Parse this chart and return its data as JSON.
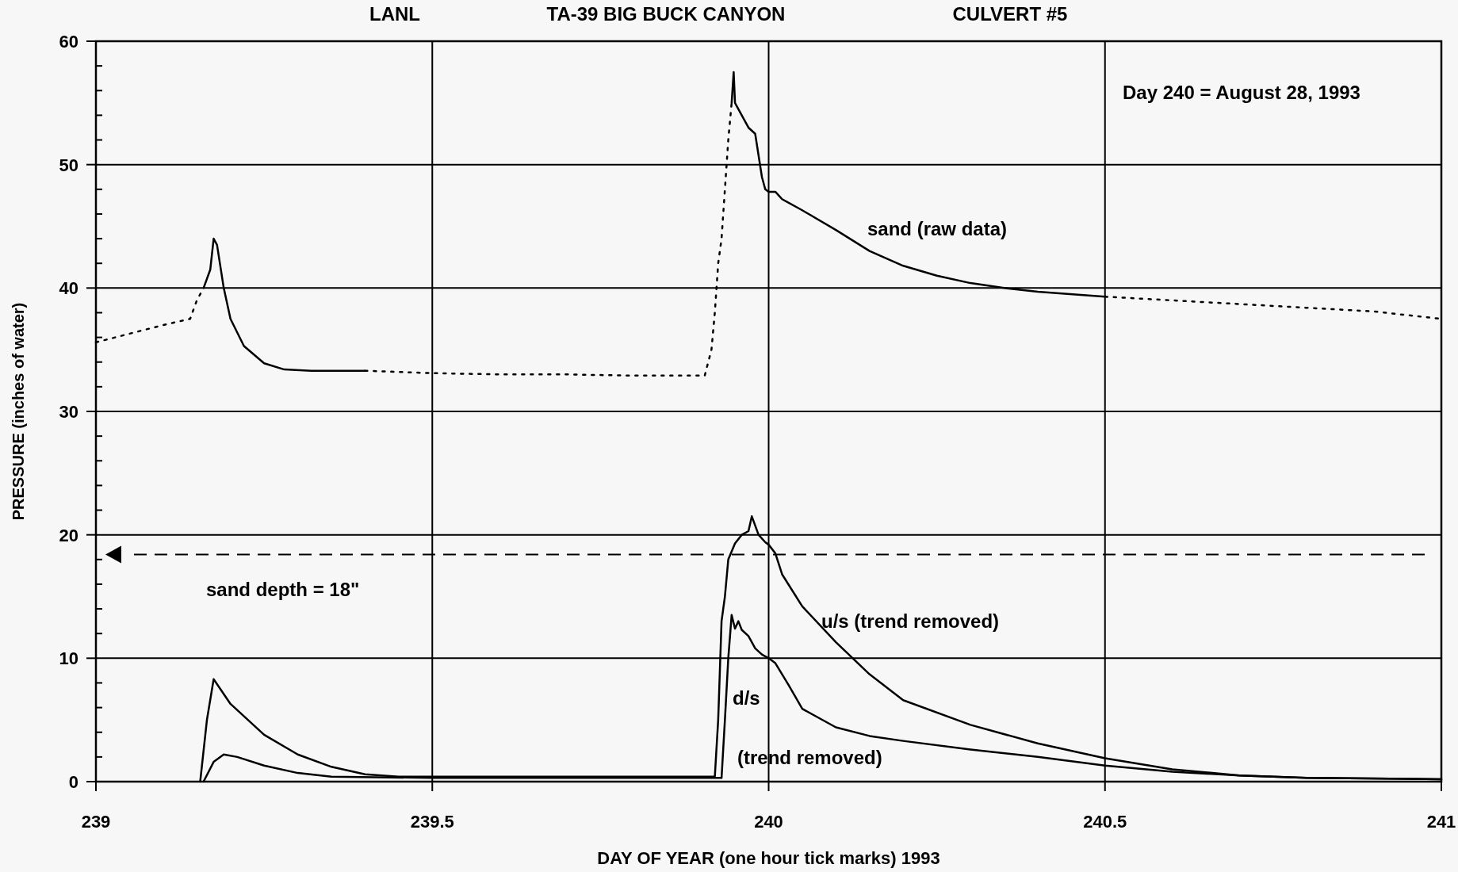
{
  "chart_data": {
    "type": "line",
    "title": "TA-39 BIG BUCK CANYON",
    "xlabel": "DAY OF YEAR (one hour tick marks) 1993",
    "ylabel": "PRESSURE (inches of water)",
    "annotations": [
      "LANL",
      "CULVERT #5",
      "Day 240 = August 28, 1993"
    ],
    "xlim": [
      239,
      241
    ],
    "xticks": [
      239,
      239.5,
      240,
      240.5,
      241
    ],
    "ylim": [
      0,
      60
    ],
    "yticks": [
      0,
      {
        "value": 2,
        "label": null
      },
      {
        "value": 4,
        "label": null
      },
      {
        "value": 6,
        "label": null
      },
      {
        "value": 8,
        "label": null
      },
      10,
      {
        "value": 12,
        "label": null
      },
      {
        "value": 14,
        "label": null
      },
      {
        "value": 16,
        "label": null
      },
      {
        "value": 18,
        "label": null
      },
      20,
      {
        "value": 22,
        "label": null
      },
      {
        "value": 24,
        "label": null
      },
      {
        "value": 26,
        "label": null
      },
      {
        "value": 28,
        "label": null
      },
      30,
      {
        "value": 32,
        "label": null
      },
      {
        "value": 34,
        "label": null
      },
      {
        "value": 36,
        "label": null
      },
      {
        "value": 38,
        "label": null
      },
      40,
      {
        "value": 42,
        "label": null
      },
      {
        "value": 44,
        "label": null
      },
      {
        "value": 46,
        "label": null
      },
      {
        "value": 48,
        "label": null
      },
      50,
      {
        "value": 52,
        "label": null
      },
      {
        "value": 54,
        "label": null
      },
      {
        "value": 56,
        "label": null
      },
      {
        "value": 58,
        "label": null
      },
      60
    ],
    "grid": true,
    "ref_lines": [
      {
        "axis": "y",
        "value": 18.4,
        "label": "sand depth = 18\"",
        "line_style": "dashed",
        "color": "#000000"
      }
    ],
    "series": [
      {
        "name": "sand (raw data)",
        "color": "#000000",
        "line_style": "solid",
        "x": [
          239.16,
          239.17,
          239.175,
          239.18,
          239.19,
          239.2,
          239.22,
          239.25,
          239.28,
          239.32,
          239.4,
          239.42,
          239.945,
          239.948,
          239.95,
          239.96,
          239.97,
          239.98,
          239.99,
          239.995,
          240.0,
          240.01,
          240.02,
          240.05,
          240.1,
          240.15,
          240.2,
          240.25,
          240.3,
          240.35,
          240.4,
          240.5
        ],
        "values": [
          40,
          41.5,
          44,
          43.5,
          40,
          37.5,
          35.3,
          33.9,
          33.4,
          33.3,
          33.3,
          null,
          55,
          57.5,
          55,
          54,
          53,
          52.5,
          49,
          48,
          47.8,
          47.8,
          47.2,
          46.3,
          44.7,
          43,
          41.8,
          41,
          40.4,
          40,
          39.7,
          39.3
        ]
      },
      {
        "color": "#000000",
        "line_style": "dotted",
        "x": [
          239,
          239.05,
          239.1,
          239.14,
          239.15,
          239.16,
          239.17,
          239.4,
          239.5,
          239.6,
          239.7,
          239.8,
          239.905,
          239.915,
          239.92,
          239.925,
          239.93,
          239.935,
          239.94,
          239.945,
          239.95,
          240.5,
          240.7,
          240.9,
          241
        ],
        "values": [
          35.6,
          36.3,
          37,
          37.5,
          39,
          40,
          null,
          33.3,
          33.1,
          33,
          33,
          32.9,
          32.9,
          35,
          38,
          42,
          44,
          48,
          52,
          55,
          null,
          39.3,
          38.7,
          38.1,
          37.5
        ]
      },
      {
        "name": "u/s (trend removed)",
        "color": "#000000",
        "line_style": "solid",
        "x": [
          239.155,
          239.165,
          239.175,
          239.2,
          239.25,
          239.3,
          239.35,
          239.4,
          239.45,
          239.6,
          239.8,
          239.92,
          239.925,
          239.93,
          239.935,
          239.94,
          239.95,
          239.96,
          239.97,
          239.975,
          239.985,
          239.995,
          240.0,
          240.01,
          240.02,
          240.05,
          240.1,
          240.15,
          240.2,
          240.3,
          240.4,
          240.5,
          240.6,
          240.7,
          240.8,
          241
        ],
        "values": [
          0,
          5,
          8.3,
          6.3,
          3.8,
          2.2,
          1.2,
          0.6,
          0.4,
          0.4,
          0.4,
          0.4,
          5,
          13,
          15,
          18,
          19.3,
          20,
          20.3,
          21.5,
          20,
          19.4,
          19.2,
          18.5,
          16.8,
          14.2,
          11.3,
          8.7,
          6.6,
          4.6,
          3.1,
          1.9,
          1,
          0.5,
          0.3,
          0.2
        ]
      },
      {
        "name": "d/s (trend removed)",
        "color": "#000000",
        "line_style": "solid",
        "x": [
          239.16,
          239.175,
          239.19,
          239.21,
          239.25,
          239.3,
          239.35,
          239.5,
          239.7,
          239.93,
          239.935,
          239.94,
          239.945,
          239.95,
          239.955,
          239.96,
          239.97,
          239.98,
          239.99,
          240.0,
          240.01,
          240.03,
          240.05,
          240.1,
          240.15,
          240.2,
          240.3,
          240.4,
          240.5,
          240.6,
          240.7,
          240.8,
          241
        ],
        "values": [
          0,
          1.6,
          2.2,
          2,
          1.3,
          0.7,
          0.4,
          0.3,
          0.3,
          0.3,
          5,
          10,
          13.5,
          12.4,
          13,
          12.3,
          11.8,
          10.8,
          10.3,
          10,
          9.6,
          7.8,
          5.9,
          4.4,
          3.7,
          3.3,
          2.6,
          2,
          1.3,
          0.8,
          0.5,
          0.3,
          0.2
        ]
      }
    ]
  }
}
